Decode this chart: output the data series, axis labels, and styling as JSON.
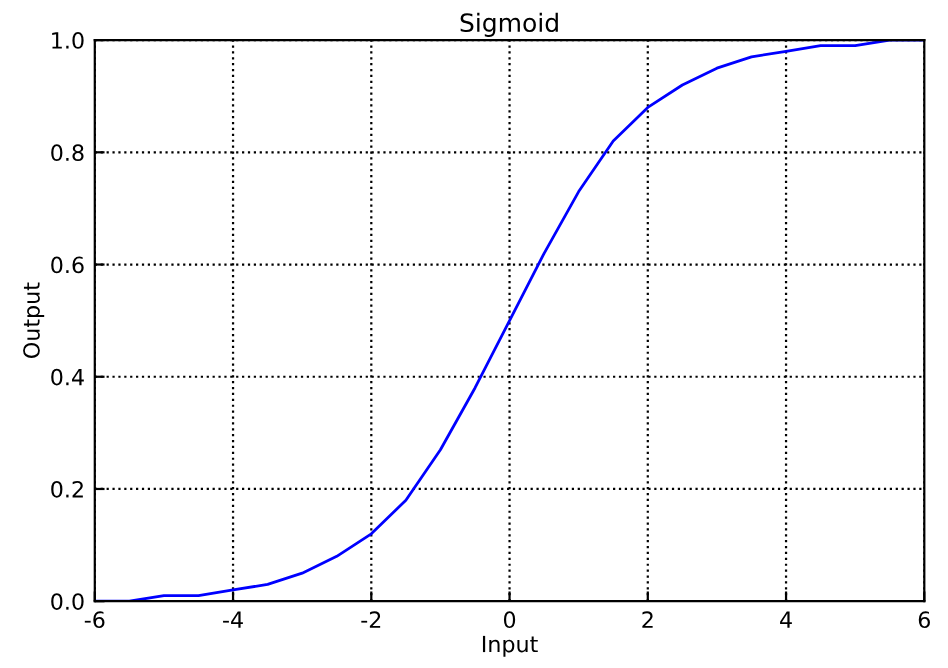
{
  "chart_data": {
    "type": "line",
    "title": "Sigmoid",
    "xlabel": "Input",
    "ylabel": "Output",
    "x": [
      -6,
      -5.5,
      -5,
      -4.5,
      -4,
      -3.5,
      -3,
      -2.5,
      -2,
      -1.5,
      -1,
      -0.5,
      0,
      0.5,
      1,
      1.5,
      2,
      2.5,
      3,
      3.5,
      4,
      4.5,
      5,
      5.5,
      6
    ],
    "series": [
      {
        "color": "#0000ff",
        "values": [
          0.0,
          0.0,
          0.01,
          0.01,
          0.02,
          0.03,
          0.05,
          0.08,
          0.12,
          0.18,
          0.27,
          0.38,
          0.5,
          0.62,
          0.73,
          0.82,
          0.88,
          0.92,
          0.95,
          0.97,
          0.98,
          0.99,
          0.99,
          1.0,
          1.0
        ]
      }
    ],
    "xlim": [
      -6,
      6
    ],
    "ylim": [
      0,
      1
    ],
    "xticks": [
      -6,
      -4,
      -2,
      0,
      2,
      4,
      6
    ],
    "yticks": [
      {
        "value": 0,
        "label": "0.0"
      },
      {
        "value": 0.2,
        "label": "0.2"
      },
      {
        "value": 0.4,
        "label": "0.4"
      },
      {
        "value": 0.6,
        "label": "0.6"
      },
      {
        "value": 0.8,
        "label": "0.8"
      },
      {
        "value": 1,
        "label": "1.0"
      }
    ],
    "grid": true,
    "marker": "none",
    "line_style": "solid"
  }
}
